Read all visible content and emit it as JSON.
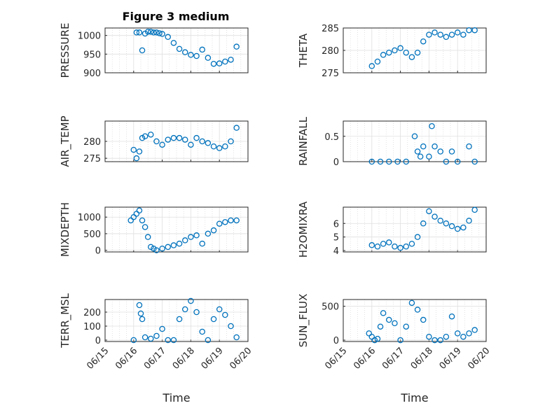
{
  "chart_data": [
    {
      "type": "scatter",
      "title": "Figure 3 medium",
      "ylabel": "PRESSURE",
      "ylim": [
        900,
        1020
      ],
      "yticks": [
        900,
        950,
        1000
      ],
      "ytick_labels": [
        "900",
        "950",
        "1000"
      ],
      "x": [
        16.1,
        16.2,
        16.3,
        16.4,
        16.5,
        16.6,
        16.7,
        16.8,
        16.9,
        17.0,
        17.2,
        17.4,
        17.6,
        17.8,
        18.0,
        18.2,
        18.4,
        18.6,
        18.8,
        19.0,
        19.2,
        19.4,
        19.6
      ],
      "y": [
        1008,
        1008,
        960,
        1005,
        1010,
        1010,
        1008,
        1008,
        1006,
        1004,
        996,
        980,
        964,
        955,
        948,
        945,
        962,
        940,
        924,
        925,
        930,
        935,
        970
      ]
    },
    {
      "type": "scatter",
      "ylabel": "THETA",
      "ylim": [
        275,
        285
      ],
      "yticks": [
        275,
        280,
        285
      ],
      "ytick_labels": [
        "275",
        "280",
        "285"
      ],
      "x": [
        16.0,
        16.2,
        16.4,
        16.6,
        16.8,
        17.0,
        17.2,
        17.4,
        17.6,
        17.8,
        18.0,
        18.2,
        18.4,
        18.6,
        18.8,
        19.0,
        19.2,
        19.4,
        19.6
      ],
      "y": [
        276.5,
        277.5,
        279.0,
        279.5,
        280.0,
        280.5,
        279.5,
        278.5,
        279.5,
        282.0,
        283.5,
        284.0,
        283.5,
        283.0,
        283.5,
        284.0,
        283.5,
        284.5,
        284.5
      ]
    },
    {
      "type": "scatter",
      "ylabel": "AIR_TEMP",
      "ylim": [
        274,
        286
      ],
      "yticks": [
        275,
        280
      ],
      "ytick_labels": [
        "275",
        "280"
      ],
      "x": [
        16.0,
        16.1,
        16.2,
        16.3,
        16.4,
        16.6,
        16.8,
        17.0,
        17.2,
        17.4,
        17.6,
        17.8,
        18.0,
        18.2,
        18.4,
        18.6,
        18.8,
        19.0,
        19.2,
        19.4,
        19.6
      ],
      "y": [
        277.5,
        275.0,
        277.0,
        281.0,
        281.5,
        282.0,
        280.0,
        279.0,
        280.5,
        281.0,
        281.0,
        280.5,
        279.0,
        281.0,
        280.0,
        279.5,
        278.5,
        278.0,
        278.5,
        280.0,
        284.0
      ]
    },
    {
      "type": "scatter",
      "ylabel": "RAINFALL",
      "ylim": [
        0,
        0.8
      ],
      "yticks": [
        0,
        0.5
      ],
      "ytick_labels": [
        "0",
        "0.5"
      ],
      "x": [
        16.0,
        16.3,
        16.6,
        16.9,
        17.2,
        17.5,
        17.6,
        17.7,
        17.8,
        18.0,
        18.1,
        18.2,
        18.4,
        18.6,
        18.8,
        19.0,
        19.4,
        19.6
      ],
      "y": [
        0,
        0,
        0,
        0,
        0,
        0.5,
        0.2,
        0.1,
        0.3,
        0.1,
        0.7,
        0.3,
        0.2,
        0,
        0.2,
        0,
        0.3,
        0
      ]
    },
    {
      "type": "scatter",
      "ylabel": "MIXDEPTH",
      "ylim": [
        -50,
        1300
      ],
      "yticks": [
        0,
        500,
        1000
      ],
      "ytick_labels": [
        "0",
        "500",
        "1000"
      ],
      "x": [
        15.9,
        16.0,
        16.1,
        16.2,
        16.3,
        16.4,
        16.5,
        16.6,
        16.7,
        16.8,
        17.0,
        17.2,
        17.4,
        17.6,
        17.8,
        18.0,
        18.2,
        18.4,
        18.6,
        18.8,
        19.0,
        19.2,
        19.4,
        19.6
      ],
      "y": [
        900,
        1000,
        1100,
        1200,
        900,
        700,
        400,
        100,
        50,
        0,
        50,
        100,
        150,
        200,
        300,
        400,
        450,
        200,
        500,
        600,
        800,
        850,
        900,
        900
      ]
    },
    {
      "type": "scatter",
      "ylabel": "H2OMIXRA",
      "ylim": [
        3.9,
        7.2
      ],
      "yticks": [
        4,
        5,
        6
      ],
      "ytick_labels": [
        "4",
        "5",
        "6"
      ],
      "x": [
        16.0,
        16.2,
        16.4,
        16.6,
        16.8,
        17.0,
        17.2,
        17.4,
        17.6,
        17.8,
        18.0,
        18.2,
        18.4,
        18.6,
        18.8,
        19.0,
        19.2,
        19.4,
        19.6
      ],
      "y": [
        4.4,
        4.3,
        4.5,
        4.6,
        4.3,
        4.2,
        4.3,
        4.5,
        5.0,
        6.0,
        6.9,
        6.5,
        6.2,
        6.0,
        5.8,
        5.6,
        5.7,
        6.2,
        7.0
      ]
    },
    {
      "type": "scatter",
      "ylabel": "TERR_MSL",
      "ylim": [
        -10,
        290
      ],
      "yticks": [
        0,
        100,
        200
      ],
      "ytick_labels": [
        "0",
        "100",
        "200"
      ],
      "x": [
        16.0,
        16.2,
        16.25,
        16.3,
        16.4,
        16.6,
        16.8,
        17.0,
        17.2,
        17.4,
        17.6,
        17.8,
        18.0,
        18.2,
        18.4,
        18.6,
        18.8,
        19.0,
        19.2,
        19.4,
        19.6
      ],
      "y": [
        0,
        250,
        190,
        150,
        20,
        10,
        30,
        80,
        0,
        0,
        150,
        220,
        280,
        200,
        60,
        0,
        150,
        220,
        180,
        100,
        20
      ]
    },
    {
      "type": "scatter",
      "ylabel": "SUN_FLUX",
      "ylim": [
        -20,
        600
      ],
      "yticks": [
        0,
        500
      ],
      "ytick_labels": [
        "0",
        "500"
      ],
      "x": [
        15.9,
        16.0,
        16.1,
        16.2,
        16.3,
        16.4,
        16.6,
        16.8,
        17.0,
        17.2,
        17.4,
        17.6,
        17.8,
        18.0,
        18.2,
        18.4,
        18.6,
        18.8,
        19.0,
        19.2,
        19.4,
        19.6
      ],
      "y": [
        100,
        50,
        0,
        20,
        200,
        400,
        300,
        250,
        0,
        200,
        550,
        450,
        300,
        50,
        0,
        0,
        50,
        350,
        100,
        50,
        100,
        150
      ]
    }
  ],
  "xaxis": {
    "label": "Time",
    "ticks": [
      15,
      16,
      17,
      18,
      19,
      20
    ],
    "tick_labels": [
      "06/15",
      "06/16",
      "06/17",
      "06/18",
      "06/19",
      "06/20"
    ],
    "xlim": [
      15,
      20
    ]
  },
  "colors": {
    "points": "#0072BD",
    "axis": "#262626",
    "grid": "#dfdfdf"
  }
}
